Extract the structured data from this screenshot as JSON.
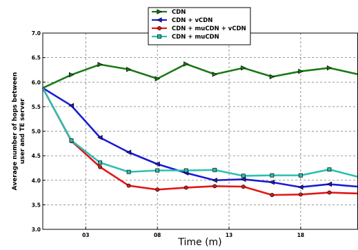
{
  "chart_data": {
    "type": "line",
    "xlabel": "Time (m)",
    "ylabel_lines": [
      "Average number of hops between",
      "user and TE server"
    ],
    "xlim": [
      0,
      22
    ],
    "ylim": [
      3.0,
      7.0
    ],
    "x_ticks": [
      3,
      8,
      13,
      18
    ],
    "x_tick_labels": [
      "03",
      "08",
      "13",
      "18"
    ],
    "y_ticks": [
      3.0,
      3.5,
      4.0,
      4.5,
      5.0,
      5.5,
      6.0,
      6.5,
      7.0
    ],
    "y_tick_labels": [
      "3.0",
      "3.5",
      "4.0",
      "4.5",
      "5.0",
      "5.5",
      "6.0",
      "6.5",
      "7.0"
    ],
    "grid": true,
    "legend_position": "top-center",
    "x": [
      0,
      2,
      4,
      6,
      8,
      10,
      12,
      14,
      16,
      18,
      20,
      22
    ],
    "series": [
      {
        "name": "CDN",
        "color": "#1a7a12",
        "marker": "triangle-right",
        "values": [
          5.88,
          6.15,
          6.36,
          6.26,
          6.07,
          6.37,
          6.16,
          6.29,
          6.11,
          6.22,
          6.29,
          6.16
        ]
      },
      {
        "name": "CDN + vCDN",
        "color": "#1a1ad6",
        "marker": "triangle-left",
        "values": [
          5.88,
          5.52,
          4.87,
          4.57,
          4.33,
          4.15,
          4.0,
          4.02,
          3.96,
          3.86,
          3.92,
          3.87
        ]
      },
      {
        "name": "CDN + muCDN + vCDN",
        "color": "#e01818",
        "marker": "circle",
        "values": [
          5.88,
          4.8,
          4.27,
          3.89,
          3.81,
          3.85,
          3.88,
          3.87,
          3.7,
          3.71,
          3.75,
          3.73
        ]
      },
      {
        "name": "CDN + muCDN",
        "color": "#2cbfb0",
        "marker": "square",
        "values": [
          5.88,
          4.81,
          4.36,
          4.17,
          4.2,
          4.2,
          4.21,
          4.09,
          4.1,
          4.1,
          4.22,
          4.07
        ]
      }
    ]
  }
}
